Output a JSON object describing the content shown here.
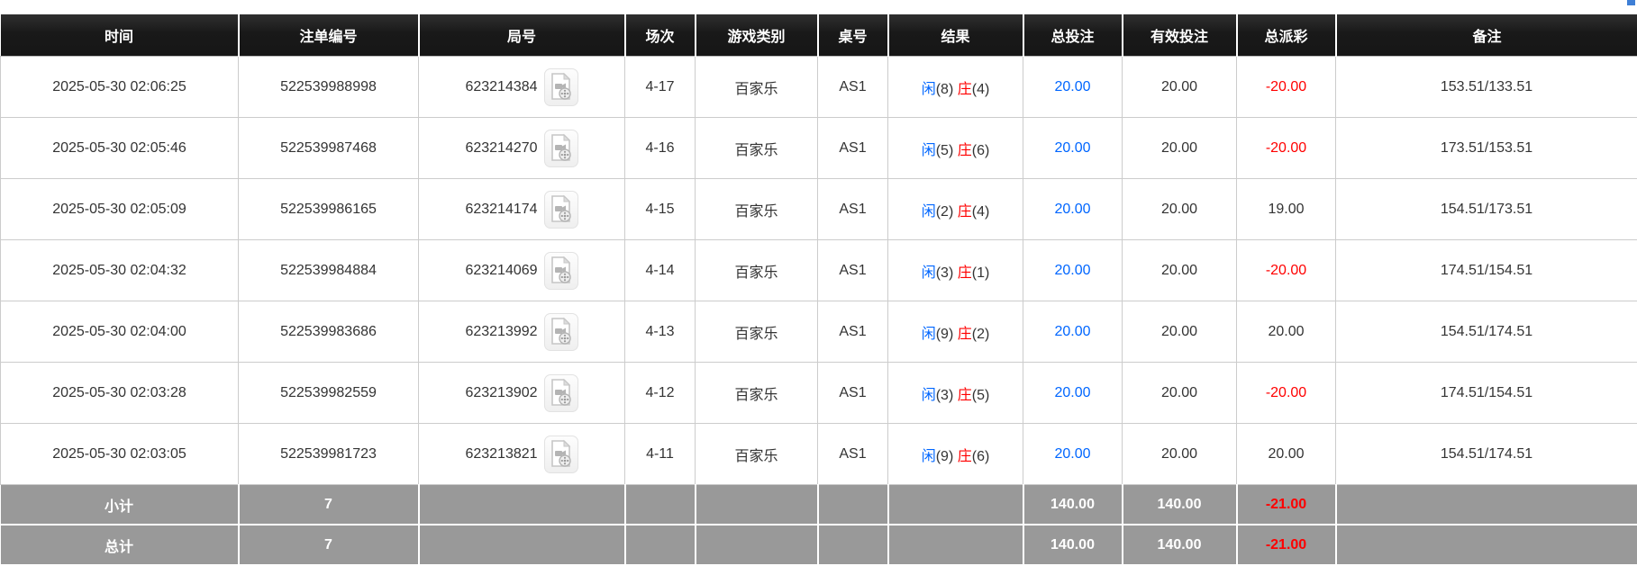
{
  "page": {
    "corner_fragment_color": "#3e7fd6"
  },
  "colors": {
    "header_bg": "#1b1b1b",
    "header_text": "#ffffff",
    "player_blue": "#0066ff",
    "banker_red": "#ff0000",
    "total_bet_blue": "#0066ff",
    "negative_red": "#ff0000",
    "summary_bg": "#999999",
    "body_text": "#333333",
    "grid_line": "#cccccc"
  },
  "icons": {
    "video_replay_icon": "video-replay"
  },
  "table": {
    "columns": [
      {
        "key": "time",
        "label": "时间"
      },
      {
        "key": "bet_id",
        "label": "注单编号"
      },
      {
        "key": "round_id",
        "label": "局号"
      },
      {
        "key": "session",
        "label": "场次"
      },
      {
        "key": "game_type",
        "label": "游戏类别"
      },
      {
        "key": "table_no",
        "label": "桌号"
      },
      {
        "key": "result",
        "label": "结果"
      },
      {
        "key": "total_bet",
        "label": "总投注"
      },
      {
        "key": "valid_bet",
        "label": "有效投注"
      },
      {
        "key": "payout",
        "label": "总派彩"
      },
      {
        "key": "remark",
        "label": "备注"
      }
    ],
    "rows": [
      {
        "time": "2025-05-30 02:06:25",
        "bet_id": "522539988998",
        "round_id": "623214384",
        "session": "4-17",
        "game_type": "百家乐",
        "table_no": "AS1",
        "result": {
          "player_label": "闲",
          "player_value": "(8)",
          "banker_label": "庄",
          "banker_value": "(4)"
        },
        "total_bet": "20.00",
        "valid_bet": "20.00",
        "payout": "-20.00",
        "remark": "153.51/133.51"
      },
      {
        "time": "2025-05-30 02:05:46",
        "bet_id": "522539987468",
        "round_id": "623214270",
        "session": "4-16",
        "game_type": "百家乐",
        "table_no": "AS1",
        "result": {
          "player_label": "闲",
          "player_value": "(5)",
          "banker_label": "庄",
          "banker_value": "(6)"
        },
        "total_bet": "20.00",
        "valid_bet": "20.00",
        "payout": "-20.00",
        "remark": "173.51/153.51"
      },
      {
        "time": "2025-05-30 02:05:09",
        "bet_id": "522539986165",
        "round_id": "623214174",
        "session": "4-15",
        "game_type": "百家乐",
        "table_no": "AS1",
        "result": {
          "player_label": "闲",
          "player_value": "(2)",
          "banker_label": "庄",
          "banker_value": "(4)"
        },
        "total_bet": "20.00",
        "valid_bet": "20.00",
        "payout": "19.00",
        "remark": "154.51/173.51"
      },
      {
        "time": "2025-05-30 02:04:32",
        "bet_id": "522539984884",
        "round_id": "623214069",
        "session": "4-14",
        "game_type": "百家乐",
        "table_no": "AS1",
        "result": {
          "player_label": "闲",
          "player_value": "(3)",
          "banker_label": "庄",
          "banker_value": "(1)"
        },
        "total_bet": "20.00",
        "valid_bet": "20.00",
        "payout": "-20.00",
        "remark": "174.51/154.51"
      },
      {
        "time": "2025-05-30 02:04:00",
        "bet_id": "522539983686",
        "round_id": "623213992",
        "session": "4-13",
        "game_type": "百家乐",
        "table_no": "AS1",
        "result": {
          "player_label": "闲",
          "player_value": "(9)",
          "banker_label": "庄",
          "banker_value": "(2)"
        },
        "total_bet": "20.00",
        "valid_bet": "20.00",
        "payout": "20.00",
        "remark": "154.51/174.51"
      },
      {
        "time": "2025-05-30 02:03:28",
        "bet_id": "522539982559",
        "round_id": "623213902",
        "session": "4-12",
        "game_type": "百家乐",
        "table_no": "AS1",
        "result": {
          "player_label": "闲",
          "player_value": "(3)",
          "banker_label": "庄",
          "banker_value": "(5)"
        },
        "total_bet": "20.00",
        "valid_bet": "20.00",
        "payout": "-20.00",
        "remark": "174.51/154.51"
      },
      {
        "time": "2025-05-30 02:03:05",
        "bet_id": "522539981723",
        "round_id": "623213821",
        "session": "4-11",
        "game_type": "百家乐",
        "table_no": "AS1",
        "result": {
          "player_label": "闲",
          "player_value": "(9)",
          "banker_label": "庄",
          "banker_value": "(6)"
        },
        "total_bet": "20.00",
        "valid_bet": "20.00",
        "payout": "20.00",
        "remark": "154.51/174.51"
      }
    ],
    "summary_rows": [
      {
        "label": "小计",
        "count": "7",
        "total_bet": "140.00",
        "valid_bet": "140.00",
        "payout": "-21.00"
      },
      {
        "label": "总计",
        "count": "7",
        "total_bet": "140.00",
        "valid_bet": "140.00",
        "payout": "-21.00"
      }
    ]
  }
}
